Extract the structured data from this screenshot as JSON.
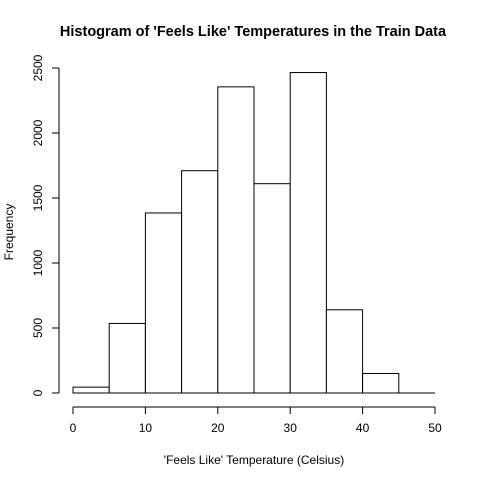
{
  "chart_data": {
    "type": "bar",
    "title": "Histogram of 'Feels Like' Temperatures in the Train Data",
    "xlabel": "'Feels Like' Temperature (Celsius)",
    "ylabel": "Frequency",
    "bins": [
      {
        "x0": 0,
        "x1": 5,
        "count": 45
      },
      {
        "x0": 5,
        "x1": 10,
        "count": 535
      },
      {
        "x0": 10,
        "x1": 15,
        "count": 1385
      },
      {
        "x0": 15,
        "x1": 20,
        "count": 1710
      },
      {
        "x0": 20,
        "x1": 25,
        "count": 2355
      },
      {
        "x0": 25,
        "x1": 30,
        "count": 1610
      },
      {
        "x0": 30,
        "x1": 35,
        "count": 2465
      },
      {
        "x0": 35,
        "x1": 40,
        "count": 640
      },
      {
        "x0": 40,
        "x1": 45,
        "count": 150
      },
      {
        "x0": 45,
        "x1": 50,
        "count": 0
      }
    ],
    "xlim": [
      0,
      50
    ],
    "ylim": [
      0,
      2500
    ],
    "x_ticks": [
      0,
      10,
      20,
      30,
      40,
      50
    ],
    "y_ticks": [
      0,
      500,
      1000,
      1500,
      2000,
      2500
    ],
    "grid": false,
    "legend": "none"
  }
}
